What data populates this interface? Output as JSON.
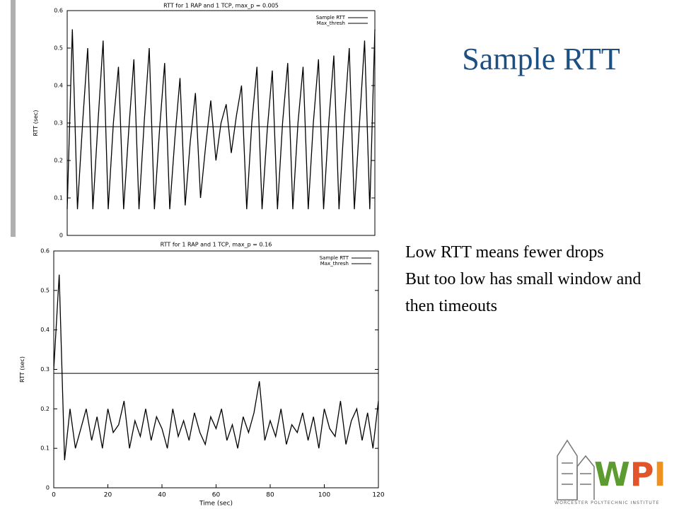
{
  "slide": {
    "title": "Sample RTT",
    "bullets": [
      "Low RTT means fewer drops",
      "But too low has small window and then timeouts"
    ],
    "logo": {
      "text": "WPI",
      "subtitle": "WORCESTER POLYTECHNIC INSTITUTE"
    }
  },
  "chart_data": [
    {
      "type": "line",
      "title": "RTT for 1 RAP and 1 TCP, max_p = 0.005",
      "ylabel": "RTT (sec)",
      "x": [
        0,
        2,
        4,
        6,
        8,
        10,
        12,
        14,
        16,
        18,
        20,
        22,
        24,
        26,
        28,
        30,
        32,
        34,
        36,
        38,
        40,
        42,
        44,
        46,
        48,
        50,
        52,
        54,
        56,
        58,
        60,
        62,
        64,
        66,
        68,
        70,
        72,
        74,
        76,
        78,
        80,
        82,
        84,
        86,
        88,
        90,
        92,
        94,
        96,
        98,
        100,
        102,
        104,
        106,
        108,
        110,
        112,
        114,
        116,
        118,
        120
      ],
      "xlim": [
        0,
        120
      ],
      "ylim": [
        0,
        0.6
      ],
      "yticks": [
        0,
        0.1,
        0.2,
        0.3,
        0.4,
        0.5,
        0.6
      ],
      "series": [
        {
          "name": "Sample RTT",
          "color": "#000000",
          "values": [
            0.07,
            0.55,
            0.07,
            0.3,
            0.5,
            0.07,
            0.3,
            0.52,
            0.07,
            0.3,
            0.45,
            0.07,
            0.28,
            0.47,
            0.07,
            0.3,
            0.5,
            0.07,
            0.28,
            0.46,
            0.07,
            0.26,
            0.42,
            0.08,
            0.25,
            0.38,
            0.1,
            0.24,
            0.36,
            0.2,
            0.3,
            0.35,
            0.22,
            0.32,
            0.4,
            0.07,
            0.3,
            0.45,
            0.07,
            0.28,
            0.44,
            0.07,
            0.3,
            0.46,
            0.07,
            0.3,
            0.45,
            0.07,
            0.3,
            0.47,
            0.07,
            0.3,
            0.48,
            0.07,
            0.3,
            0.5,
            0.07,
            0.3,
            0.52,
            0.07,
            0.55
          ]
        },
        {
          "name": "Max_thresh",
          "color": "#000000",
          "values": [
            0.29,
            0.29,
            0.29,
            0.29,
            0.29,
            0.29,
            0.29,
            0.29,
            0.29,
            0.29,
            0.29,
            0.29,
            0.29,
            0.29,
            0.29,
            0.29,
            0.29,
            0.29,
            0.29,
            0.29,
            0.29,
            0.29,
            0.29,
            0.29,
            0.29,
            0.29,
            0.29,
            0.29,
            0.29,
            0.29,
            0.29,
            0.29,
            0.29,
            0.29,
            0.29,
            0.29,
            0.29,
            0.29,
            0.29,
            0.29,
            0.29,
            0.29,
            0.29,
            0.29,
            0.29,
            0.29,
            0.29,
            0.29,
            0.29,
            0.29,
            0.29,
            0.29,
            0.29,
            0.29,
            0.29,
            0.29,
            0.29,
            0.29,
            0.29,
            0.29,
            0.29
          ]
        }
      ]
    },
    {
      "type": "line",
      "title": "RTT for 1 RAP and 1 TCP, max_p = 0.16",
      "ylabel": "RTT (sec)",
      "xlabel": "Time (sec)",
      "x": [
        0,
        2,
        4,
        6,
        8,
        10,
        12,
        14,
        16,
        18,
        20,
        22,
        24,
        26,
        28,
        30,
        32,
        34,
        36,
        38,
        40,
        42,
        44,
        46,
        48,
        50,
        52,
        54,
        56,
        58,
        60,
        62,
        64,
        66,
        68,
        70,
        72,
        74,
        76,
        78,
        80,
        82,
        84,
        86,
        88,
        90,
        92,
        94,
        96,
        98,
        100,
        102,
        104,
        106,
        108,
        110,
        112,
        114,
        116,
        118,
        120
      ],
      "xlim": [
        0,
        120
      ],
      "xticks": [
        0,
        20,
        40,
        60,
        80,
        100,
        120
      ],
      "ylim": [
        0,
        0.6
      ],
      "yticks": [
        0,
        0.1,
        0.2,
        0.3,
        0.4,
        0.5,
        0.6
      ],
      "series": [
        {
          "name": "Sample RTT",
          "color": "#000000",
          "values": [
            0.3,
            0.54,
            0.07,
            0.2,
            0.1,
            0.15,
            0.2,
            0.12,
            0.18,
            0.1,
            0.2,
            0.14,
            0.16,
            0.22,
            0.1,
            0.17,
            0.13,
            0.2,
            0.12,
            0.18,
            0.15,
            0.1,
            0.2,
            0.13,
            0.17,
            0.12,
            0.19,
            0.14,
            0.11,
            0.18,
            0.15,
            0.2,
            0.12,
            0.16,
            0.1,
            0.18,
            0.14,
            0.19,
            0.27,
            0.12,
            0.17,
            0.13,
            0.2,
            0.11,
            0.16,
            0.14,
            0.19,
            0.12,
            0.18,
            0.1,
            0.2,
            0.15,
            0.13,
            0.22,
            0.11,
            0.17,
            0.2,
            0.12,
            0.19,
            0.1,
            0.22
          ]
        },
        {
          "name": "Max_thresh",
          "color": "#000000",
          "values": [
            0.29,
            0.29,
            0.29,
            0.29,
            0.29,
            0.29,
            0.29,
            0.29,
            0.29,
            0.29,
            0.29,
            0.29,
            0.29,
            0.29,
            0.29,
            0.29,
            0.29,
            0.29,
            0.29,
            0.29,
            0.29,
            0.29,
            0.29,
            0.29,
            0.29,
            0.29,
            0.29,
            0.29,
            0.29,
            0.29,
            0.29,
            0.29,
            0.29,
            0.29,
            0.29,
            0.29,
            0.29,
            0.29,
            0.29,
            0.29,
            0.29,
            0.29,
            0.29,
            0.29,
            0.29,
            0.29,
            0.29,
            0.29,
            0.29,
            0.29,
            0.29,
            0.29,
            0.29,
            0.29,
            0.29,
            0.29,
            0.29,
            0.29,
            0.29,
            0.29,
            0.29
          ]
        }
      ]
    }
  ]
}
